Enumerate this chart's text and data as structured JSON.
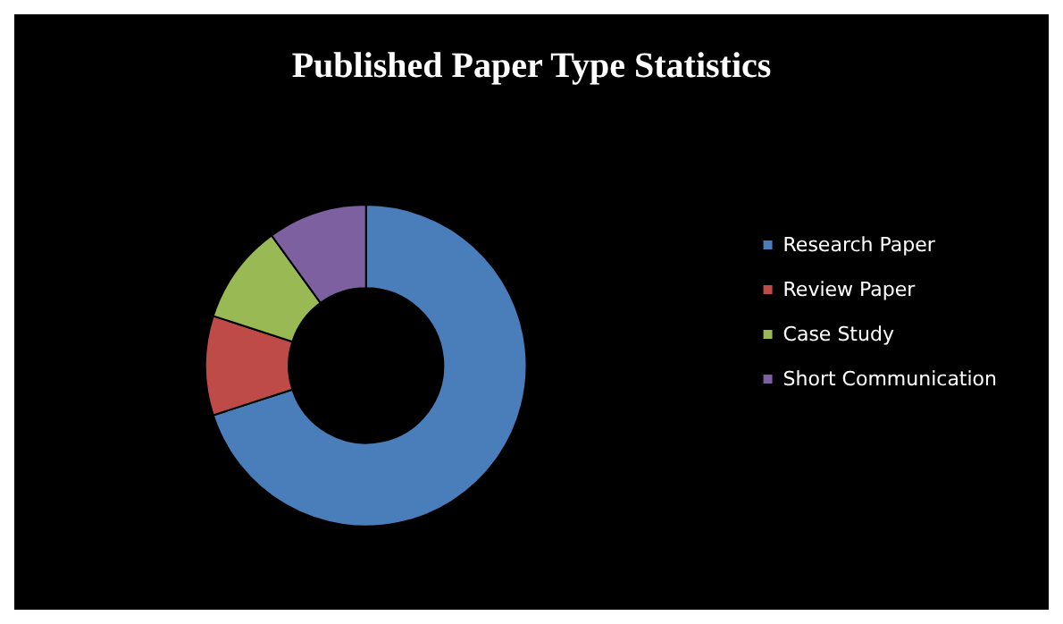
{
  "chart_data": {
    "type": "donut",
    "title": "Published Paper Type Statistics",
    "categories": [
      "Research Paper",
      "Review Paper",
      "Case Study",
      "Short Communication"
    ],
    "values": [
      70,
      10,
      10,
      10
    ],
    "colors": [
      "#4a7ebb",
      "#be4b48",
      "#98b954",
      "#7d60a0"
    ],
    "legend": "right"
  }
}
